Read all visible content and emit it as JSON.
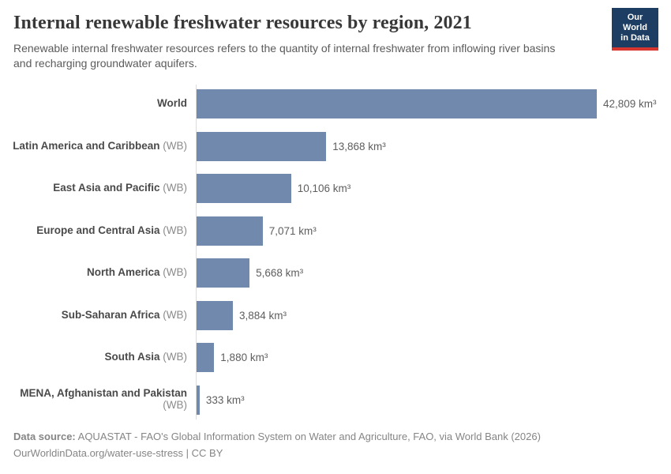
{
  "header": {
    "title": "Internal renewable freshwater resources by region, 2021",
    "subtitle": "Renewable internal freshwater resources refers to the quantity of internal freshwater from inflowing river basins and recharging groundwater aquifers.",
    "logo": {
      "line1": "Our World",
      "line2": "in Data"
    }
  },
  "chart_data": {
    "type": "bar",
    "orientation": "horizontal",
    "title": "Internal renewable freshwater resources by region, 2021",
    "unit": "km³",
    "xlim": [
      0,
      42809
    ],
    "grid": false,
    "legend": "none",
    "categories": [
      "World",
      "Latin America and Caribbean (WB)",
      "East Asia and Pacific (WB)",
      "Europe and Central Asia (WB)",
      "North America (WB)",
      "Sub-Saharan Africa (WB)",
      "South Asia (WB)",
      "MENA, Afghanistan and Pakistan (WB)"
    ],
    "values": [
      42809,
      13868,
      10106,
      7071,
      5668,
      3884,
      1880,
      333
    ],
    "rows": [
      {
        "label": "World",
        "tag": "",
        "value": 42809,
        "value_label": "42,809 km³"
      },
      {
        "label": "Latin America and Caribbean",
        "tag": " (WB)",
        "value": 13868,
        "value_label": "13,868 km³"
      },
      {
        "label": "East Asia and Pacific",
        "tag": " (WB)",
        "value": 10106,
        "value_label": "10,106 km³"
      },
      {
        "label": "Europe and Central Asia",
        "tag": " (WB)",
        "value": 7071,
        "value_label": "7,071 km³"
      },
      {
        "label": "North America",
        "tag": " (WB)",
        "value": 5668,
        "value_label": "5,668 km³"
      },
      {
        "label": "Sub-Saharan Africa",
        "tag": " (WB)",
        "value": 3884,
        "value_label": "3,884 km³"
      },
      {
        "label": "South Asia",
        "tag": " (WB)",
        "value": 1880,
        "value_label": "1,880 km³"
      },
      {
        "label": "MENA, Afghanistan and Pakistan",
        "tag": " (WB)",
        "value": 333,
        "value_label": "333 km³"
      }
    ]
  },
  "footer": {
    "source_label": "Data source:",
    "source_text": " AQUASTAT - FAO's Global Information System on Water and Agriculture, FAO, via World Bank (2026)",
    "license_text": "OurWorldinData.org/water-use-stress | CC BY"
  },
  "colors": {
    "bar": "#7189ad",
    "axis": "#dcdcdc",
    "logo_bg": "#1d3d63",
    "logo_stripe": "#d8352f",
    "title_text": "#383838",
    "subtitle_text": "#5b5b5b",
    "footer_text": "#858585"
  }
}
